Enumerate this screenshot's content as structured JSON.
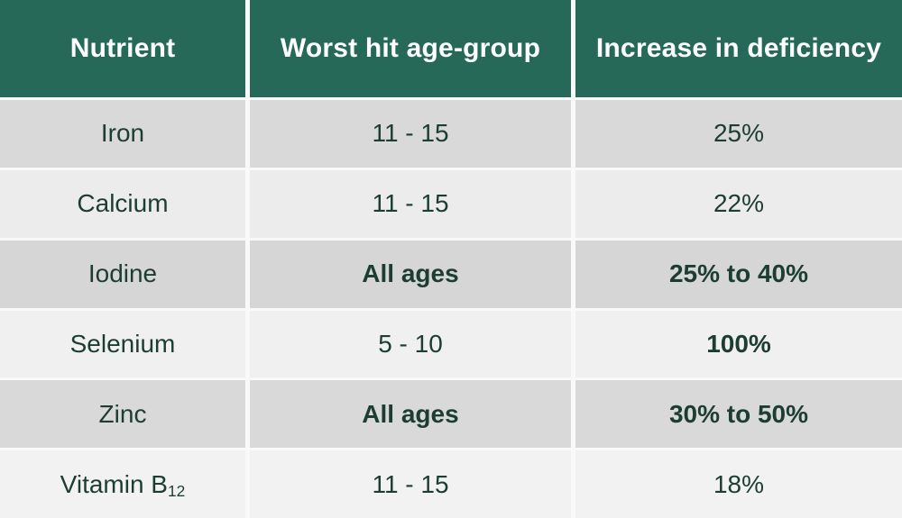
{
  "chart_data": {
    "type": "table",
    "columns": [
      {
        "label": "Nutrient"
      },
      {
        "label": "Worst hit age-group"
      },
      {
        "label": "Increase in deficiency"
      }
    ],
    "rows": [
      {
        "nutrient": "Iron",
        "nutrient_subscript": "",
        "age_group": "11 - 15",
        "increase": "25%",
        "age_group_bold": false,
        "increase_bold": false
      },
      {
        "nutrient": "Calcium",
        "nutrient_subscript": "",
        "age_group": "11 - 15",
        "increase": "22%",
        "age_group_bold": false,
        "increase_bold": false
      },
      {
        "nutrient": "Iodine",
        "nutrient_subscript": "",
        "age_group": "All ages",
        "increase": "25% to 40%",
        "age_group_bold": true,
        "increase_bold": true
      },
      {
        "nutrient": "Selenium",
        "nutrient_subscript": "",
        "age_group": "5 - 10",
        "increase": "100%",
        "age_group_bold": false,
        "increase_bold": true
      },
      {
        "nutrient": "Zinc",
        "nutrient_subscript": "",
        "age_group": "All ages",
        "increase": "30% to 50%",
        "age_group_bold": true,
        "increase_bold": true
      },
      {
        "nutrient": "Vitamin B",
        "nutrient_subscript": "12",
        "age_group": "11 - 15",
        "increase": "18%",
        "age_group_bold": false,
        "increase_bold": false
      }
    ],
    "layout_hints": {
      "header_position": "top",
      "grid": "white gaps between cells",
      "row_shading": "alternating gray starting dark"
    },
    "colors": {
      "header_bg": "#266959",
      "header_text": "#ffffff",
      "cell_text": "#1c3d33",
      "row_dark": "#d9d9d9",
      "row_light": "#eeeeee",
      "divider": "#f9f9f9"
    }
  }
}
